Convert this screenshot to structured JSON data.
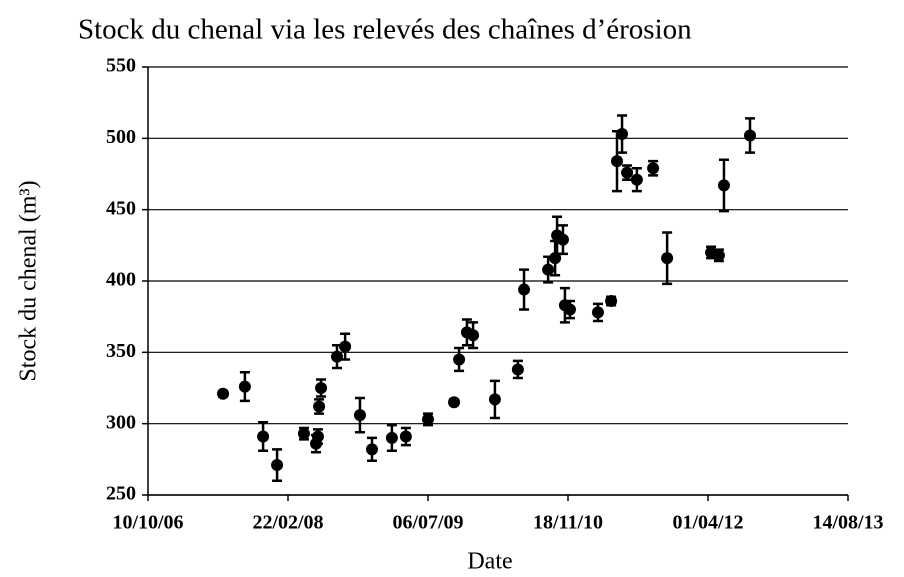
{
  "chart_data": {
    "type": "scatter",
    "title": "Stock du chenal via les relevés des chaînes d’érosion",
    "x_label": "Date",
    "y_label": "Stock du chenal (m³)",
    "color": "#000000",
    "grid": true,
    "xlim": [
      39000,
      41500
    ],
    "xticks": [
      {
        "value": 39000,
        "label": "10/10/06"
      },
      {
        "value": 39500,
        "label": "22/02/08"
      },
      {
        "value": 40000,
        "label": "06/07/09"
      },
      {
        "value": 40500,
        "label": "18/11/10"
      },
      {
        "value": 41000,
        "label": "01/04/12"
      },
      {
        "value": 41500,
        "label": "14/08/13"
      }
    ],
    "ylim": [
      250,
      550
    ],
    "yticks": [
      250,
      300,
      350,
      400,
      450,
      500,
      550
    ],
    "x": [
      39268,
      39346,
      39411,
      39461,
      39557,
      39600,
      39607,
      39611,
      39618,
      39675,
      39704,
      39757,
      39800,
      39871,
      39921,
      40000,
      40093,
      40111,
      40139,
      40161,
      40239,
      40321,
      40343,
      40429,
      40454,
      40461,
      40482,
      40489,
      40507,
      40607,
      40654,
      40675,
      40693,
      40711,
      40746,
      40804,
      40854,
      41011,
      41039,
      41057,
      41150
    ],
    "values": [
      321,
      326,
      291,
      271,
      293,
      286,
      291,
      312,
      325,
      347,
      354,
      306,
      282,
      290,
      291,
      303,
      315,
      345,
      364,
      362,
      317,
      338,
      394,
      408,
      416,
      432,
      429,
      383,
      380,
      378,
      386,
      484,
      503,
      476,
      471,
      479,
      416,
      420,
      418,
      467,
      502
    ],
    "errors": [
      2,
      10,
      10,
      11,
      4,
      6,
      5,
      5,
      6,
      8,
      9,
      12,
      8,
      9,
      6,
      4,
      2,
      8,
      9,
      9,
      13,
      6,
      14,
      9,
      12,
      13,
      10,
      12,
      6,
      6,
      3,
      21,
      13,
      5,
      8,
      5,
      18,
      4,
      4,
      18,
      12
    ]
  }
}
